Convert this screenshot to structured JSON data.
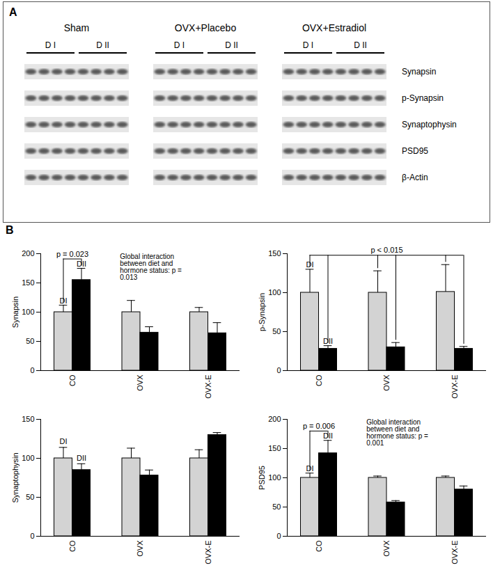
{
  "panel_a": {
    "label": "A",
    "groups": [
      "Sham",
      "OVX+Placebo",
      "OVX+Estradiol"
    ],
    "diets": [
      "D I",
      "D II"
    ],
    "proteins": [
      "Synapsin",
      "p-Synapsin",
      "Synaptophysin",
      "PSD95",
      "β-Actin"
    ]
  },
  "panel_b_label": "B",
  "chart_data": [
    {
      "type": "bar",
      "ylabel": "Synapsin",
      "categories": [
        "CO",
        "OVX",
        "OVX-E"
      ],
      "series": [
        {
          "name": "DI",
          "color": "#d3d3d3",
          "values": [
            100,
            100,
            100
          ],
          "errors": [
            12,
            20,
            8
          ]
        },
        {
          "name": "DII",
          "color": "#000000",
          "values": [
            155,
            65,
            64
          ],
          "errors": [
            20,
            10,
            18
          ]
        }
      ],
      "ylim": [
        0,
        200
      ],
      "yticks": [
        0,
        50,
        100,
        150,
        200
      ],
      "annotations": [
        {
          "text": "p = 0.023",
          "categories": [
            "CO"
          ]
        }
      ],
      "note": "Global interaction between diet and hormone status: p = 0.013"
    },
    {
      "type": "bar",
      "ylabel": "p-Synapsin",
      "categories": [
        "CO",
        "OVX",
        "OVX-E"
      ],
      "series": [
        {
          "name": "DI",
          "color": "#d3d3d3",
          "values": [
            100,
            100,
            101
          ],
          "errors": [
            30,
            28,
            35
          ]
        },
        {
          "name": "DII",
          "color": "#000000",
          "values": [
            28,
            30,
            28
          ],
          "errors": [
            4,
            6,
            3
          ]
        }
      ],
      "ylim": [
        0,
        150
      ],
      "yticks": [
        0,
        50,
        100,
        150
      ],
      "annotations": [
        {
          "text": "p < 0.015",
          "categories": [
            "CO",
            "OVX",
            "OVX-E"
          ]
        }
      ]
    },
    {
      "type": "bar",
      "ylabel": "Synaptophysin",
      "categories": [
        "CO",
        "OVX",
        "OVX-E"
      ],
      "series": [
        {
          "name": "DI",
          "color": "#d3d3d3",
          "values": [
            100,
            100,
            100
          ],
          "errors": [
            14,
            13,
            11
          ]
        },
        {
          "name": "DII",
          "color": "#000000",
          "values": [
            85,
            78,
            130
          ],
          "errors": [
            8,
            7,
            3
          ]
        }
      ],
      "ylim": [
        0,
        150
      ],
      "yticks": [
        0,
        50,
        100,
        150
      ],
      "annotations": []
    },
    {
      "type": "bar",
      "ylabel": "PSD95",
      "categories": [
        "CO",
        "OVX",
        "OVX-E"
      ],
      "series": [
        {
          "name": "DI",
          "color": "#d3d3d3",
          "values": [
            100,
            100,
            100
          ],
          "errors": [
            8,
            3,
            3
          ]
        },
        {
          "name": "DII",
          "color": "#000000",
          "values": [
            142,
            58,
            80
          ],
          "errors": [
            22,
            3,
            6
          ]
        }
      ],
      "ylim": [
        0,
        200
      ],
      "yticks": [
        0,
        50,
        100,
        150,
        200
      ],
      "annotations": [
        {
          "text": "p = 0.006",
          "categories": [
            "CO"
          ]
        }
      ],
      "note": "Global interaction between diet and hormone status: p = 0.001"
    }
  ]
}
